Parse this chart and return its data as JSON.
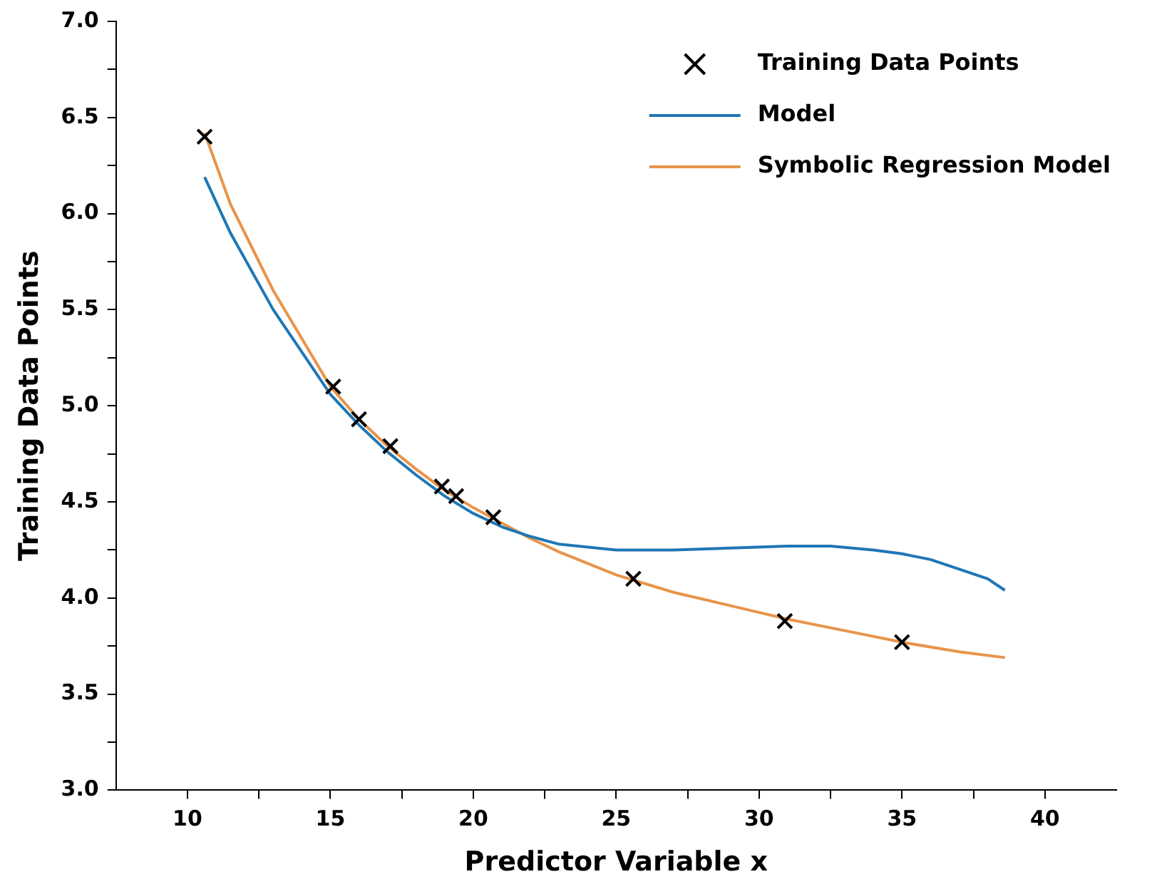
{
  "chart_data": {
    "type": "line",
    "xlabel": "Predictor Variable x",
    "ylabel": "Training Data Points",
    "xlim": [
      7.5,
      42.5
    ],
    "xticks": [
      10,
      {
        "value": 12.5,
        "label": null
      },
      15,
      {
        "value": 17.5,
        "label": null
      },
      20,
      {
        "value": 22.5,
        "label": null
      },
      25,
      {
        "value": 27.5,
        "label": null
      },
      30,
      {
        "value": 32.5,
        "label": null
      },
      35,
      {
        "value": 37.5,
        "label": null
      },
      40
    ],
    "ylim": [
      3.0,
      7.0
    ],
    "yticks": [
      {
        "value": 3,
        "label": "3.0"
      },
      {
        "value": 3.25,
        "label": null
      },
      {
        "value": 3.5,
        "label": "3.5"
      },
      {
        "value": 3.75,
        "label": null
      },
      {
        "value": 4,
        "label": "4.0"
      },
      {
        "value": 4.25,
        "label": null
      },
      {
        "value": 4.5,
        "label": "4.5"
      },
      {
        "value": 4.75,
        "label": null
      },
      {
        "value": 5,
        "label": "5.0"
      },
      {
        "value": 5.25,
        "label": null
      },
      {
        "value": 5.5,
        "label": "5.5"
      },
      {
        "value": 5.75,
        "label": null
      },
      {
        "value": 6,
        "label": "6.0"
      },
      {
        "value": 6.25,
        "label": null
      },
      {
        "value": 6.5,
        "label": "6.5"
      },
      {
        "value": 6.75,
        "label": null
      },
      {
        "value": 7,
        "label": "7.0"
      }
    ],
    "legend": "top right",
    "grid": false,
    "series": [
      {
        "name": "Training Data Points",
        "type": "scatter",
        "marker": "cross",
        "color": "#000000",
        "x": [
          10.6,
          15.1,
          16.0,
          17.1,
          18.9,
          19.4,
          20.7,
          25.6,
          30.9,
          35.0
        ],
        "values": [
          6.4,
          5.1,
          4.93,
          4.79,
          4.58,
          4.53,
          4.42,
          4.1,
          3.88,
          3.77
        ]
      },
      {
        "name": "Model",
        "type": "line",
        "marker": "none",
        "color": "#1f77b4",
        "x": [
          10.6,
          11.5,
          13,
          15,
          16,
          17,
          18,
          19,
          20,
          21,
          22,
          23,
          25,
          27,
          29,
          31,
          32.5,
          34,
          35,
          36,
          37,
          38,
          38.6
        ],
        "values": [
          6.19,
          5.9,
          5.5,
          5.06,
          4.9,
          4.76,
          4.64,
          4.53,
          4.44,
          4.37,
          4.32,
          4.28,
          4.25,
          4.25,
          4.26,
          4.27,
          4.27,
          4.25,
          4.23,
          4.2,
          4.15,
          4.1,
          4.04
        ]
      },
      {
        "name": "Symbolic Regression Model",
        "type": "line",
        "marker": "none",
        "color": "#e8944a",
        "x": [
          10.6,
          11.5,
          12.5,
          13,
          15,
          16,
          17,
          18,
          19,
          20,
          21,
          22,
          23,
          25,
          27,
          29,
          31,
          33,
          35,
          37,
          38.6
        ],
        "values": [
          6.42,
          6.05,
          5.75,
          5.6,
          5.1,
          4.93,
          4.79,
          4.67,
          4.56,
          4.47,
          4.39,
          4.31,
          4.24,
          4.12,
          4.03,
          3.96,
          3.89,
          3.83,
          3.77,
          3.72,
          3.69
        ]
      }
    ]
  }
}
